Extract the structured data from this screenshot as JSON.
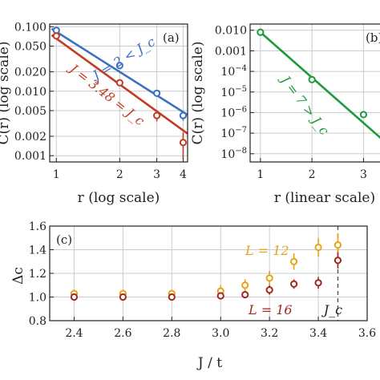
{
  "chart_data": [
    {
      "panel": "(a)",
      "type": "line",
      "x_scale": "log",
      "y_scale": "log",
      "xlabel": "r (log scale)",
      "ylabel": "C(r) (log scale)",
      "xlim": [
        0.93,
        4.2
      ],
      "ylim": [
        0.0008,
        0.11
      ],
      "xticks": [
        1,
        2,
        3,
        4
      ],
      "yticks": [
        0.1,
        0.05,
        0.02,
        0.01,
        0.005,
        0.002,
        0.001
      ],
      "ytick_labels": [
        "0.100",
        "0.050",
        "0.020",
        "0.010",
        "0.005",
        "0.002",
        "0.001"
      ],
      "grid": true,
      "series": [
        {
          "name": "J = 2 < J_c",
          "color": "#3b6fc4",
          "x": [
            1,
            2,
            3,
            4
          ],
          "y": [
            0.088,
            0.025,
            0.0093,
            0.0042
          ],
          "err": [
            0.004,
            0.002,
            0.0009,
            0.0007
          ],
          "fit": [
            [
              0.95,
              0.093
            ],
            [
              4.2,
              0.0043
            ]
          ]
        },
        {
          "name": "J = 3.48 = J_c",
          "color": "#c23b22",
          "x": [
            1,
            2,
            3,
            4
          ],
          "y": [
            0.072,
            0.0135,
            0.0042,
            0.0016
          ],
          "err": [
            0.004,
            0.0015,
            0.0008,
            0.0007
          ],
          "fit": [
            [
              0.95,
              0.074
            ],
            [
              4.2,
              0.0022
            ]
          ]
        }
      ],
      "annotations": [
        {
          "text": "J = 2 < J_c",
          "color": "#3b6fc4"
        },
        {
          "text": "J = 3.48 = J_c",
          "color": "#c23b22"
        }
      ]
    },
    {
      "panel": "(b)",
      "type": "line",
      "x_scale": "linear",
      "y_scale": "log",
      "xlabel": "r (linear scale)",
      "ylabel": "C(r) (log scale)",
      "xlim": [
        0.8,
        3.6
      ],
      "ylim": [
        4e-09,
        0.02
      ],
      "xticks": [
        1,
        2,
        3
      ],
      "yticks": [
        0.01,
        0.001,
        0.0001,
        1e-05,
        1e-06,
        1e-07,
        1e-08
      ],
      "ytick_labels": [
        "0.010",
        "0.001",
        "10^-4",
        "10^-5",
        "10^-6",
        "10^-7",
        "10^-8"
      ],
      "grid": true,
      "series": [
        {
          "name": "J = 7 > J_c",
          "color": "#1e9a3a",
          "x": [
            1,
            2,
            3
          ],
          "y": [
            0.008,
            4e-05,
            8e-07
          ],
          "fit": [
            [
              1,
              0.008
            ],
            [
              3.6,
              1.5e-08
            ]
          ]
        }
      ],
      "annotations": [
        {
          "text": "J = 7 > J_c",
          "color": "#1e9a3a"
        }
      ]
    },
    {
      "panel": "(c)",
      "type": "scatter",
      "xlabel": "J / t",
      "ylabel": "Δc",
      "xlim": [
        2.3,
        3.6
      ],
      "ylim": [
        0.8,
        1.6
      ],
      "xticks": [
        2.4,
        2.6,
        2.8,
        3.0,
        3.2,
        3.4,
        3.6
      ],
      "xtick_labels": [
        "2.4",
        "2.6",
        "2.8",
        "3.0",
        "3.2",
        "3.4",
        "3.6"
      ],
      "yticks": [
        0.8,
        1.0,
        1.2,
        1.4,
        1.6
      ],
      "ytick_labels": [
        "0.8",
        "1.0",
        "1.2",
        "1.4",
        "1.6"
      ],
      "grid": true,
      "vline": {
        "x": 3.48,
        "label": "J_c"
      },
      "series": [
        {
          "name": "L = 12",
          "color": "#e8a21a",
          "x": [
            2.4,
            2.6,
            2.8,
            3.0,
            3.1,
            3.2,
            3.3,
            3.4,
            3.48
          ],
          "y": [
            1.03,
            1.03,
            1.03,
            1.05,
            1.1,
            1.16,
            1.3,
            1.42,
            1.44
          ],
          "err": [
            0.03,
            0.03,
            0.03,
            0.05,
            0.05,
            0.06,
            0.07,
            0.08,
            0.1
          ]
        },
        {
          "name": "L = 16",
          "color": "#a0281e",
          "x": [
            2.4,
            2.6,
            2.8,
            3.0,
            3.1,
            3.2,
            3.3,
            3.4,
            3.48
          ],
          "y": [
            1.0,
            1.0,
            1.0,
            1.01,
            1.02,
            1.06,
            1.11,
            1.12,
            1.31
          ],
          "err": [
            0.02,
            0.02,
            0.02,
            0.03,
            0.03,
            0.04,
            0.04,
            0.05,
            0.07
          ]
        }
      ]
    }
  ]
}
